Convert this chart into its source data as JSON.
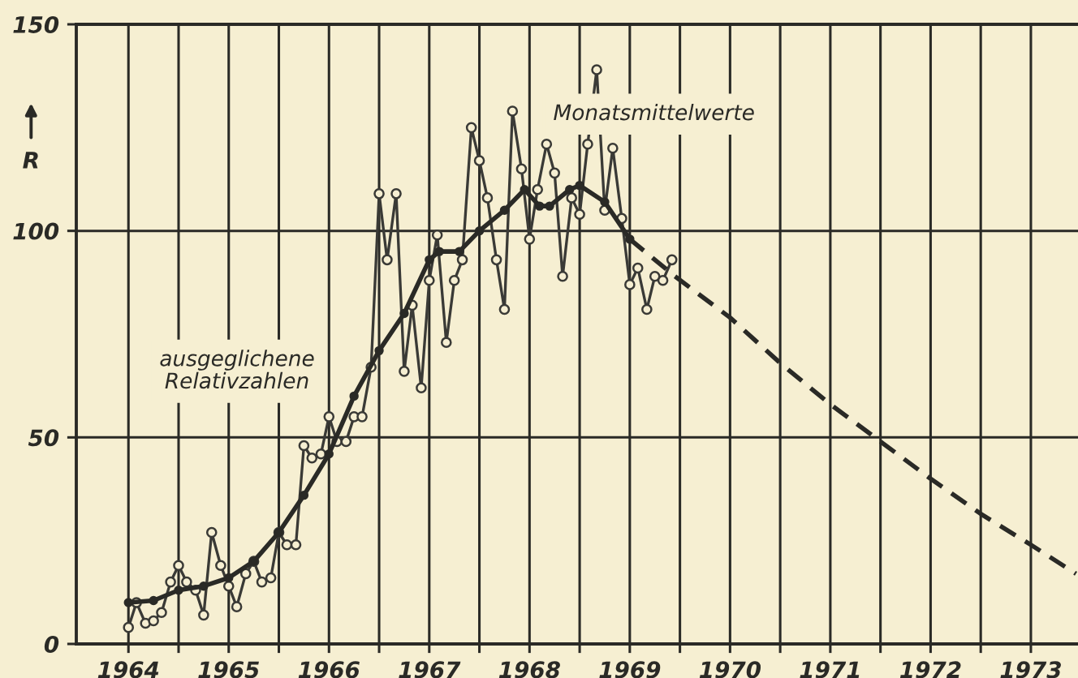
{
  "chart_data": {
    "type": "line",
    "ylabel": "R",
    "xlim": [
      1963.48,
      1973.5
    ],
    "ylim": [
      0,
      150
    ],
    "xticks": [
      {
        "value": 1964,
        "label": "1964"
      },
      {
        "value": 1964.5,
        "label": null
      },
      {
        "value": 1965,
        "label": "1965"
      },
      {
        "value": 1965.5,
        "label": null
      },
      {
        "value": 1966,
        "label": "1966"
      },
      {
        "value": 1966.5,
        "label": null
      },
      {
        "value": 1967,
        "label": "1967"
      },
      {
        "value": 1967.5,
        "label": null
      },
      {
        "value": 1968,
        "label": "1968"
      },
      {
        "value": 1968.5,
        "label": null
      },
      {
        "value": 1969,
        "label": "1969"
      },
      {
        "value": 1969.5,
        "label": null
      },
      {
        "value": 1970,
        "label": "1970"
      },
      {
        "value": 1970.5,
        "label": null
      },
      {
        "value": 1971,
        "label": "1971"
      },
      {
        "value": 1971.5,
        "label": null
      },
      {
        "value": 1972,
        "label": "1972"
      },
      {
        "value": 1972.5,
        "label": null
      },
      {
        "value": 1973,
        "label": "1973"
      }
    ],
    "yticks": [
      0,
      50,
      100,
      150
    ],
    "grid": true,
    "legend": false,
    "series": [
      {
        "color": "#3a3a36",
        "marker": "circle",
        "line_style": "solid",
        "x": [
          1964.0,
          1964.08,
          1964.17,
          1964.25,
          1964.33,
          1964.42,
          1964.5,
          1964.58,
          1964.67,
          1964.75,
          1964.83,
          1964.92,
          1965.0,
          1965.08,
          1965.17,
          1965.25,
          1965.33,
          1965.42,
          1965.5,
          1965.58,
          1965.67,
          1965.75,
          1965.83,
          1965.92,
          1966.0,
          1966.08,
          1966.17,
          1966.25,
          1966.33,
          1966.42,
          1966.5,
          1966.58,
          1966.67,
          1966.75,
          1966.83,
          1966.92,
          1967.0,
          1967.08,
          1967.17,
          1967.25,
          1967.33,
          1967.42,
          1967.5,
          1967.58,
          1967.67,
          1967.75,
          1967.83,
          1967.92,
          1968.0,
          1968.08,
          1968.17,
          1968.25,
          1968.33,
          1968.42,
          1968.5,
          1968.58,
          1968.67,
          1968.75,
          1968.83,
          1968.92,
          1969.0,
          1969.08,
          1969.17,
          1969.25,
          1969.33,
          1969.42
        ],
        "values": [
          4,
          10,
          5,
          5.6,
          7.6,
          15,
          19,
          15,
          13,
          7,
          27,
          19,
          14,
          9,
          17,
          20,
          15,
          16,
          27,
          24,
          24,
          48,
          45,
          46,
          55,
          49,
          49,
          55,
          55,
          67,
          109,
          93,
          109,
          66,
          82,
          62,
          88,
          99,
          73,
          88,
          93,
          125,
          117,
          108,
          93,
          81,
          129,
          115,
          98,
          110,
          121,
          114,
          89,
          108,
          104,
          121,
          139,
          105,
          120,
          103,
          87,
          91,
          81,
          89,
          88,
          93
        ]
      },
      {
        "color": "#2a2a26",
        "marker": "circle",
        "line_style": "solid",
        "x": [
          1964.0,
          1964.25,
          1964.5,
          1964.75,
          1965.0,
          1965.25,
          1965.5,
          1965.75,
          1966.0,
          1966.25,
          1966.5,
          1966.75,
          1967.0,
          1967.1,
          1967.3,
          1967.5,
          1967.75,
          1967.95,
          1968.1,
          1968.2,
          1968.4,
          1968.5,
          1968.75,
          1969.0
        ],
        "values": [
          10,
          10.5,
          13,
          14,
          16,
          20,
          27,
          36,
          46,
          60,
          71,
          80,
          93,
          95,
          95,
          100,
          105,
          110,
          106,
          106,
          110,
          111,
          107,
          98
        ]
      },
      {
        "color": "#2a2a26",
        "marker": "none",
        "line_style": "dashed",
        "x": [
          1969.0,
          1969.45,
          1970.0,
          1970.5,
          1971.0,
          1971.5,
          1972.0,
          1972.5,
          1973.0,
          1973.45
        ],
        "values": [
          98,
          89,
          79,
          68,
          58,
          49,
          40,
          31.5,
          24,
          17
        ]
      }
    ],
    "annotations": [
      "ausgeglichene\nRelativzahlen",
      "Monatsmittelwerte"
    ]
  }
}
